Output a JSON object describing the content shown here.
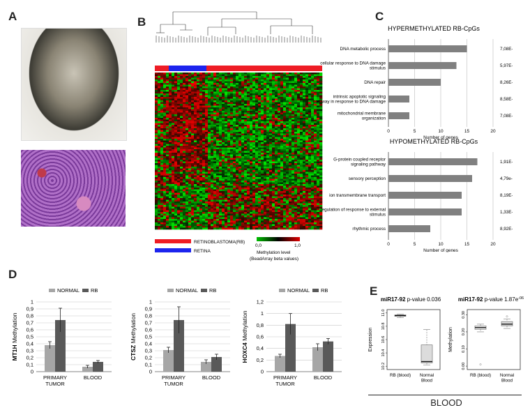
{
  "panels": {
    "a": "A",
    "b": "B",
    "c": "C",
    "d": "D",
    "e": "E"
  },
  "heatmap": {
    "legend_rb": "RETINOBLASTOMA(RB)",
    "legend_retina": "RETINA",
    "colorbar_title": "Methylation level",
    "colorbar_subtitle": "(BeadArray beta values)",
    "colorbar_min": "0,0",
    "colorbar_max": "1,0",
    "colors": {
      "rb": "#ee1c25",
      "retina": "#1c24ee",
      "low": "#00c000",
      "high": "#e00000"
    }
  },
  "chart_data": [
    {
      "id": "c-hyper",
      "type": "bar",
      "title": "HYPERMETHYLATED RB-CpGs",
      "categories": [
        "DNA metabolic process",
        "cellular response to DNA damage stimulus",
        "DNA repair",
        "intrinsic apoptotic signaling pathway in response to DNA damage",
        "mitochondrial membrane organization"
      ],
      "values": [
        15,
        13,
        10,
        4,
        4
      ],
      "pvalues": [
        "7,08E-04",
        "5,97E-03",
        "8,26E-03",
        "8,58E-03",
        "7,08E-04"
      ],
      "xlabel": "Number of genes",
      "xlim": [
        0,
        20
      ],
      "xticks": [
        "0",
        "5",
        "10",
        "15",
        "20"
      ],
      "bar_color": "#808080"
    },
    {
      "id": "c-hypo",
      "type": "bar",
      "title": "HYPOMETHYLATED RB-CpGs",
      "categories": [
        "G-protein coupled receptor signaling pathway",
        "sensory perception",
        "ion transmembrane transport",
        "regulation of response to external stimulus",
        "rhythmic process"
      ],
      "values": [
        17,
        16,
        14,
        14,
        8
      ],
      "pvalues": [
        "1,91E-05",
        "4,79e-04",
        "8,19E-03",
        "1,33E-03",
        "8,92E-03"
      ],
      "xlabel": "Number of genes",
      "xlim": [
        0,
        20
      ],
      "xticks": [
        "0",
        "5",
        "10",
        "15",
        "20"
      ],
      "bar_color": "#808080"
    },
    {
      "id": "d-mt1h",
      "type": "bar",
      "ylabel_bold": "MT1H",
      "ylabel_rest": "Methylation",
      "categories": [
        "PRIMARY TUMOR",
        "BLOOD"
      ],
      "series": [
        {
          "name": "NORMAL",
          "values": [
            0.38,
            0.07
          ],
          "err": [
            0.05,
            0.02
          ],
          "color": "#a6a6a6"
        },
        {
          "name": "RB",
          "values": [
            0.74,
            0.14
          ],
          "err": [
            0.17,
            0.02
          ],
          "color": "#595959"
        }
      ],
      "ylim": [
        0,
        1
      ],
      "yticks": [
        "0",
        "0,1",
        "0,2",
        "0,3",
        "0,4",
        "0,5",
        "0,6",
        "0,7",
        "0,8",
        "0,9",
        "1"
      ]
    },
    {
      "id": "d-ctsz",
      "type": "bar",
      "ylabel_bold": "CTSZ",
      "ylabel_rest": "Methylation",
      "categories": [
        "PRIMARY TUMOR",
        "BLOOD"
      ],
      "series": [
        {
          "name": "NORMAL",
          "values": [
            0.31,
            0.14
          ],
          "err": [
            0.04,
            0.03
          ],
          "color": "#a6a6a6"
        },
        {
          "name": "RB",
          "values": [
            0.74,
            0.21
          ],
          "err": [
            0.19,
            0.04
          ],
          "color": "#595959"
        }
      ],
      "ylim": [
        0,
        1
      ],
      "yticks": [
        "0",
        "0,1",
        "0,2",
        "0,3",
        "0,4",
        "0,5",
        "0,6",
        "0,7",
        "0,8",
        "0,9",
        "1"
      ]
    },
    {
      "id": "d-hoxc4",
      "type": "bar",
      "ylabel_bold": "HOXC4",
      "ylabel_rest": "Methylation",
      "categories": [
        "PRIMARY TUMOR",
        "BLOOD"
      ],
      "series": [
        {
          "name": "NORMAL",
          "values": [
            0.27,
            0.42
          ],
          "err": [
            0.03,
            0.06
          ],
          "color": "#a6a6a6"
        },
        {
          "name": "RB",
          "values": [
            0.82,
            0.52
          ],
          "err": [
            0.18,
            0.05
          ],
          "color": "#595959"
        }
      ],
      "ylim": [
        0,
        1.2
      ],
      "yticks": [
        "0",
        "0,2",
        "0,4",
        "0,6",
        "0,8",
        "1",
        "1,2"
      ]
    },
    {
      "id": "e-expr",
      "type": "box",
      "title_bold": "miR17-92",
      "title_rest": " p-value 0.036",
      "ylabel": "Expression",
      "categories": [
        "RB (blood)",
        "Normal Blood"
      ],
      "boxes": [
        {
          "min": 10.93,
          "q1": 10.95,
          "median": 10.96,
          "q3": 10.97,
          "max": 10.98
        },
        {
          "min": 10.22,
          "q1": 10.25,
          "median": 10.27,
          "q3": 10.52,
          "max": 10.75
        }
      ],
      "ylim": [
        10.15,
        11.05
      ],
      "yticks": [
        10.2,
        10.4,
        10.6,
        10.8,
        11.0
      ],
      "ytick_labels": [
        "10.2",
        "10.4",
        "10.6",
        "10.8",
        "11.0"
      ]
    },
    {
      "id": "e-meth",
      "type": "box",
      "title_bold": "miR17-92",
      "title_rest": " p-value 1.87e",
      "title_sup": "-06",
      "ylabel": "Methylation",
      "categories": [
        "RB (blood)",
        "Normal Blood"
      ],
      "boxes": [
        {
          "min": 0.2,
          "q1": 0.215,
          "median": 0.225,
          "q3": 0.235,
          "max": 0.245,
          "outliers": [
            0.01
          ]
        },
        {
          "min": 0.22,
          "q1": 0.235,
          "median": 0.245,
          "q3": 0.26,
          "max": 0.275,
          "outliers": [
            0.29
          ]
        }
      ],
      "ylim": [
        -0.02,
        0.33
      ],
      "yticks": [
        0.0,
        0.1,
        0.2,
        0.3
      ],
      "ytick_labels": [
        "0.00",
        "0.10",
        "0.20",
        "0.30"
      ]
    }
  ],
  "blood_label": "BLOOD"
}
